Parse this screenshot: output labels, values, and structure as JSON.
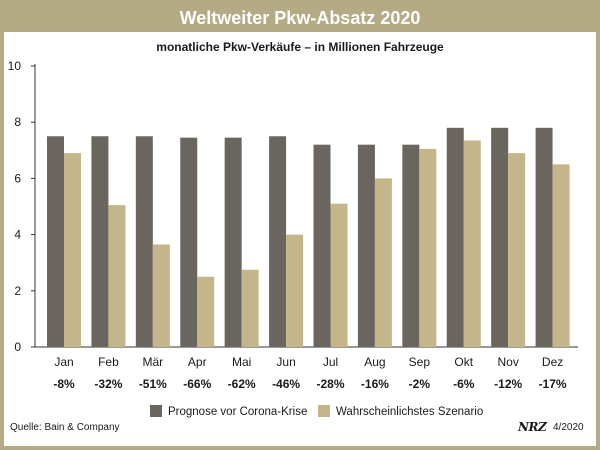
{
  "title": "Weltweiter Pkw-Absatz 2020",
  "subtitle": "monatliche Pkw-Verkäufe – in Millionen Fahrzeuge",
  "source": "Quelle: Bain & Company",
  "brand": "NRZ",
  "issue": "4/2020",
  "colors": {
    "frame": "#b5aa86",
    "prognose": "#6b6560",
    "szenario": "#c4b68a",
    "axis": "#333333"
  },
  "chart_data": {
    "type": "bar",
    "categories": [
      "Jan",
      "Feb",
      "Mär",
      "Apr",
      "Mai",
      "Jun",
      "Jul",
      "Aug",
      "Sep",
      "Okt",
      "Nov",
      "Dez"
    ],
    "series": [
      {
        "name": "Prognose vor Corona-Krise",
        "values": [
          7.5,
          7.5,
          7.5,
          7.45,
          7.45,
          7.5,
          7.2,
          7.2,
          7.2,
          7.8,
          7.8,
          7.8
        ]
      },
      {
        "name": "Wahrscheinlichstes Szenario",
        "values": [
          6.9,
          5.05,
          3.65,
          2.5,
          2.75,
          4.0,
          5.1,
          6.0,
          7.05,
          7.35,
          6.9,
          6.5
        ]
      }
    ],
    "changes": [
      "-8%",
      "-32%",
      "-51%",
      "-66%",
      "-62%",
      "-46%",
      "-28%",
      "-16%",
      "-2%",
      "-6%",
      "-12%",
      "-17%"
    ],
    "yticks": [
      0,
      2,
      4,
      6,
      8,
      10
    ],
    "ylim": [
      0,
      10
    ],
    "grid": false,
    "legend_position": "bottom"
  }
}
